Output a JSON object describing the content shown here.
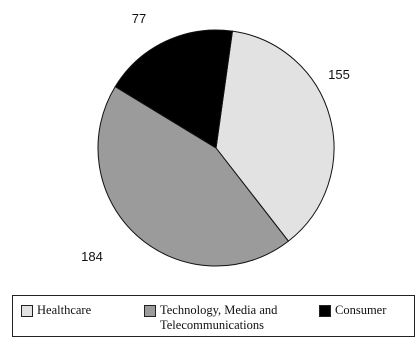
{
  "chart_data": {
    "type": "pie",
    "title": "",
    "categories": [
      "Healthcare",
      "Technology, Media and Telecommunications",
      "Consumer"
    ],
    "values": [
      155,
      184,
      77
    ],
    "labels": [
      "155",
      "184",
      "77"
    ],
    "colors": [
      "#e2e2e2",
      "#9b9b9b",
      "#000000"
    ],
    "legend_position": "bottom",
    "legend": {
      "healthcare": "Healthcare",
      "tmt": "Technology, Media and Telecommunications",
      "consumer": "Consumer"
    }
  }
}
